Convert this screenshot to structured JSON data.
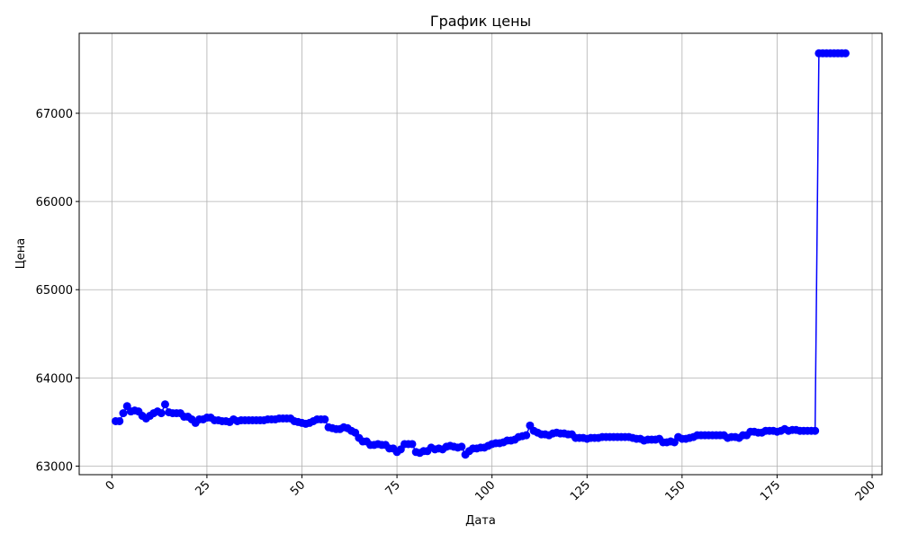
{
  "chart_data": {
    "type": "line",
    "title": "График цены",
    "xlabel": "Дата",
    "ylabel": "Цена",
    "x": [
      1,
      2,
      3,
      4,
      5,
      6,
      7,
      8,
      9,
      10,
      11,
      12,
      13,
      14,
      15,
      16,
      17,
      18,
      19,
      20,
      21,
      22,
      23,
      24,
      25,
      26,
      27,
      28,
      29,
      30,
      31,
      32,
      33,
      34,
      35,
      36,
      37,
      38,
      39,
      40,
      41,
      42,
      43,
      44,
      45,
      46,
      47,
      48,
      49,
      50,
      51,
      52,
      53,
      54,
      55,
      56,
      57,
      58,
      59,
      60,
      61,
      62,
      63,
      64,
      65,
      66,
      67,
      68,
      69,
      70,
      71,
      72,
      73,
      74,
      75,
      76,
      77,
      78,
      79,
      80,
      81,
      82,
      83,
      84,
      85,
      86,
      87,
      88,
      89,
      90,
      91,
      92,
      93,
      94,
      95,
      96,
      97,
      98,
      99,
      100,
      101,
      102,
      103,
      104,
      105,
      106,
      107,
      108,
      109,
      110,
      111,
      112,
      113,
      114,
      115,
      116,
      117,
      118,
      119,
      120,
      121,
      122,
      123,
      124,
      125,
      126,
      127,
      128,
      129,
      130,
      131,
      132,
      133,
      134,
      135,
      136,
      137,
      138,
      139,
      140,
      141,
      142,
      143,
      144,
      145,
      146,
      147,
      148,
      149,
      150,
      151,
      152,
      153,
      154,
      155,
      156,
      157,
      158,
      159,
      160,
      161,
      162,
      163,
      164,
      165,
      166,
      167,
      168,
      169,
      170,
      171,
      172,
      173,
      174,
      175,
      176,
      177,
      178,
      179,
      180,
      181,
      182,
      183,
      184,
      185,
      186,
      187,
      188,
      189,
      190,
      191,
      192,
      193
    ],
    "series": [
      {
        "color": "#0000ff",
        "values": [
          63510,
          63510,
          63600,
          63680,
          63620,
          63630,
          63620,
          63570,
          63540,
          63570,
          63600,
          63620,
          63600,
          63700,
          63610,
          63600,
          63600,
          63600,
          63560,
          63560,
          63530,
          63490,
          63530,
          63530,
          63550,
          63550,
          63520,
          63520,
          63510,
          63510,
          63500,
          63530,
          63510,
          63520,
          63520,
          63520,
          63520,
          63520,
          63520,
          63520,
          63530,
          63530,
          63530,
          63540,
          63540,
          63540,
          63540,
          63510,
          63500,
          63490,
          63480,
          63490,
          63510,
          63530,
          63530,
          63530,
          63440,
          63430,
          63420,
          63420,
          63440,
          63430,
          63400,
          63380,
          63320,
          63280,
          63280,
          63240,
          63240,
          63250,
          63240,
          63240,
          63200,
          63200,
          63160,
          63190,
          63250,
          63250,
          63250,
          63160,
          63150,
          63170,
          63170,
          63210,
          63190,
          63200,
          63190,
          63220,
          63230,
          63220,
          63210,
          63220,
          63130,
          63170,
          63200,
          63200,
          63210,
          63210,
          63230,
          63250,
          63260,
          63260,
          63270,
          63290,
          63290,
          63300,
          63330,
          63340,
          63350,
          63460,
          63400,
          63380,
          63360,
          63360,
          63350,
          63370,
          63380,
          63370,
          63370,
          63360,
          63360,
          63320,
          63320,
          63320,
          63310,
          63320,
          63320,
          63320,
          63330,
          63330,
          63330,
          63330,
          63330,
          63330,
          63330,
          63330,
          63320,
          63310,
          63310,
          63290,
          63300,
          63300,
          63300,
          63310,
          63270,
          63270,
          63280,
          63270,
          63330,
          63310,
          63310,
          63320,
          63330,
          63350,
          63350,
          63350,
          63350,
          63350,
          63350,
          63350,
          63350,
          63320,
          63330,
          63330,
          63320,
          63350,
          63350,
          63390,
          63390,
          63380,
          63380,
          63400,
          63400,
          63400,
          63390,
          63400,
          63420,
          63400,
          63410,
          63410,
          63400,
          63400,
          63400,
          63400,
          63400,
          67680,
          67680,
          67680,
          67680,
          67680,
          67680,
          67680,
          67680
        ]
      }
    ],
    "xlim": [
      -8.6,
      202.6
    ],
    "xticks": [
      0,
      25,
      50,
      75,
      100,
      125,
      150,
      175,
      200
    ],
    "ylim": [
      62903,
      67907
    ],
    "yticks": [
      63000,
      64000,
      65000,
      66000,
      67000
    ],
    "grid": true
  }
}
